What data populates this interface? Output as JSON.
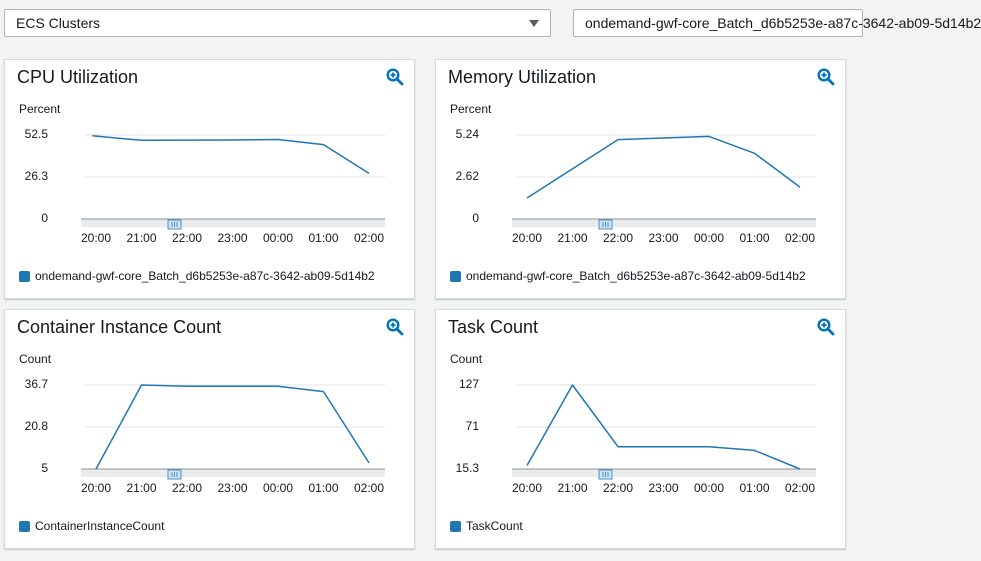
{
  "controls": {
    "service_select": "ECS Clusters",
    "cluster_select": "ondemand-gwf-core_Batch_d6b5253e-a87c-3642-ab09-5d14b2"
  },
  "colors": {
    "series": "#1f77b4",
    "icon": "#0073bb",
    "track": "#e9ebed",
    "gridline": "#dfe3e6",
    "axis": "#879596"
  },
  "widgets": [
    {
      "title": "CPU Utilization",
      "unit": "Percent",
      "legend": "ondemand-gwf-core_Batch_d6b5253e-a87c-3642-ab09-5d14b2",
      "zoom_icon": "zoom-in-icon"
    },
    {
      "title": "Memory Utilization",
      "unit": "Percent",
      "legend": "ondemand-gwf-core_Batch_d6b5253e-a87c-3642-ab09-5d14b2",
      "zoom_icon": "zoom-in-icon"
    },
    {
      "title": "Container Instance Count",
      "unit": "Count",
      "legend": "ContainerInstanceCount",
      "zoom_icon": "zoom-in-icon"
    },
    {
      "title": "Task Count",
      "unit": "Count",
      "legend": "TaskCount",
      "zoom_icon": "zoom-in-icon"
    }
  ],
  "chart_data": [
    {
      "type": "line",
      "x": [
        "19:55",
        "21:00",
        "23:00",
        "00:00",
        "01:00",
        "02:00"
      ],
      "series": [
        {
          "name": "ondemand-gwf-core_Batch_d6b5253e-a87c-3642-ab09-5d14b2",
          "values": [
            52,
            49.2,
            49.4,
            49.7,
            46.5,
            28.5
          ]
        }
      ],
      "xticks": [
        "20:00",
        "21:00",
        "22:00",
        "23:00",
        "00:00",
        "01:00",
        "02:00"
      ],
      "yticks": [
        "52.5",
        "26.3",
        "0"
      ],
      "ylim": [
        0,
        52.5
      ],
      "xlabel": "",
      "ylabel": "Percent"
    },
    {
      "type": "line",
      "x": [
        "20:00",
        "22:00",
        "00:00",
        "01:00",
        "02:00"
      ],
      "series": [
        {
          "name": "ondemand-gwf-core_Batch_d6b5253e-a87c-3642-ab09-5d14b2",
          "values": [
            1.31,
            4.95,
            5.15,
            4.1,
            1.99
          ]
        }
      ],
      "xticks": [
        "20:00",
        "21:00",
        "22:00",
        "23:00",
        "00:00",
        "01:00",
        "02:00"
      ],
      "yticks": [
        "5.24",
        "2.62",
        "0"
      ],
      "ylim": [
        0,
        5.24
      ],
      "xlabel": "",
      "ylabel": "Percent"
    },
    {
      "type": "line",
      "x": [
        "20:00",
        "21:00",
        "22:00",
        "23:00",
        "00:00",
        "01:00",
        "02:00"
      ],
      "series": [
        {
          "name": "ContainerInstanceCount",
          "values": [
            5,
            36.7,
            36.2,
            36.2,
            36.2,
            34.2,
            7.3
          ]
        }
      ],
      "xticks": [
        "20:00",
        "21:00",
        "22:00",
        "23:00",
        "00:00",
        "01:00",
        "02:00"
      ],
      "yticks": [
        "36.7",
        "20.8",
        "5"
      ],
      "ylim": [
        5,
        36.7
      ],
      "xlabel": "",
      "ylabel": "Count"
    },
    {
      "type": "line",
      "x": [
        "20:00",
        "21:00",
        "22:00",
        "23:00",
        "00:00",
        "01:00",
        "02:00"
      ],
      "series": [
        {
          "name": "TaskCount",
          "values": [
            20,
            127,
            45,
            45,
            45,
            40,
            15.3
          ]
        }
      ],
      "xticks": [
        "20:00",
        "21:00",
        "22:00",
        "23:00",
        "00:00",
        "01:00",
        "02:00"
      ],
      "yticks": [
        "127",
        "71",
        "15.3"
      ],
      "ylim": [
        15.3,
        127
      ],
      "xlabel": "",
      "ylabel": "Count"
    }
  ]
}
